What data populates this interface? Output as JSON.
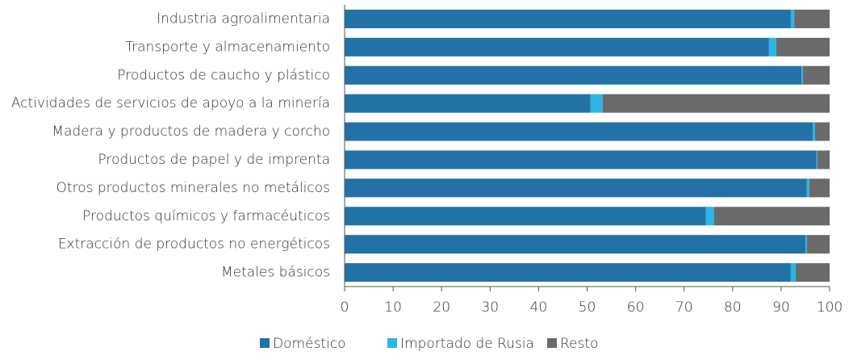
{
  "chart_data": {
    "type": "stacked-barh",
    "categories": [
      "Industria agroalimentaria",
      "Transporte y almacenamiento",
      "Productos de caucho y plástico",
      "Actividades de servicios de apoyo a la minería",
      "Madera y productos de madera y corcho",
      "Productos de papel y de imprenta",
      "Otros productos minerales no metálicos",
      "Productos químicos y farmacéuticos",
      "Extracción de productos no energéticos",
      "Metales básicos"
    ],
    "series": [
      {
        "name": "Doméstico",
        "color": "#2272a8",
        "values": [
          92.0,
          87.5,
          94.2,
          50.7,
          96.5,
          97.3,
          95.3,
          74.5,
          95.0,
          92.0
        ]
      },
      {
        "name": "Importado de Rusia",
        "color": "#2cb5e6",
        "values": [
          0.7,
          1.5,
          0.3,
          2.5,
          0.5,
          0.2,
          0.5,
          1.7,
          0.3,
          1.0
        ]
      },
      {
        "name": "Resto",
        "color": "#6a6a6a",
        "values": [
          7.3,
          11.0,
          5.5,
          46.8,
          3.0,
          2.5,
          4.2,
          23.8,
          4.7,
          7.0
        ]
      }
    ],
    "xlim": [
      0,
      100
    ],
    "xticks": [
      0,
      10,
      20,
      30,
      40,
      50,
      60,
      70,
      80,
      90,
      100
    ]
  }
}
